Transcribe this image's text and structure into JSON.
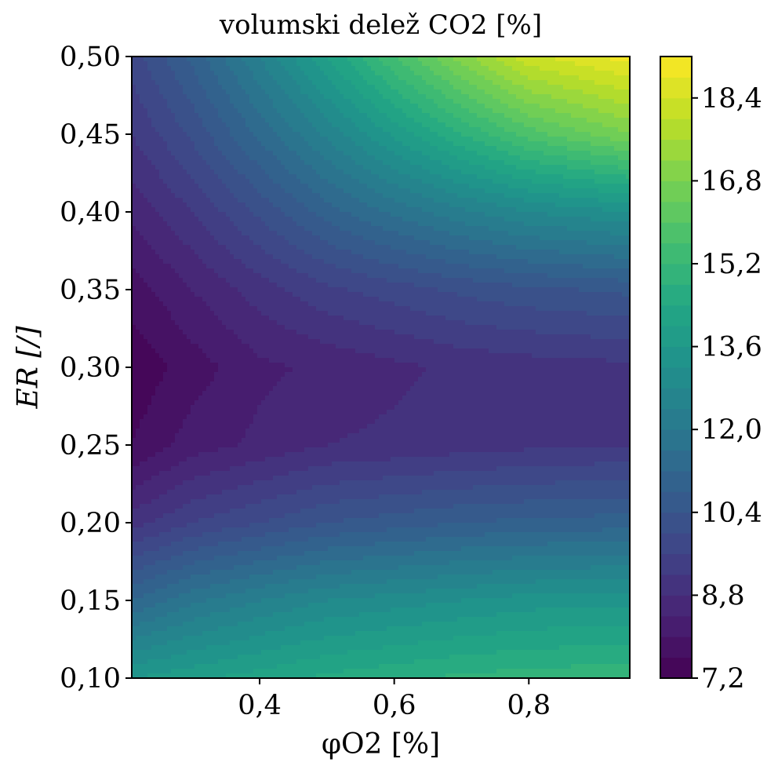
{
  "chart_data": {
    "type": "heatmap",
    "style": "filled-contour",
    "colormap": "viridis",
    "title": "volumski delež CO2 [%]",
    "xlabel": "φO2 [%]",
    "ylabel": "ER [/]",
    "xlim": [
      0.21,
      0.95
    ],
    "ylim": [
      0.1,
      0.5
    ],
    "x_ticks": [
      {
        "value": 0.4,
        "label": "0,4"
      },
      {
        "value": 0.6,
        "label": "0,6"
      },
      {
        "value": 0.8,
        "label": "0,8"
      }
    ],
    "y_ticks": [
      {
        "value": 0.1,
        "label": "0,10"
      },
      {
        "value": 0.15,
        "label": "0,15"
      },
      {
        "value": 0.2,
        "label": "0,20"
      },
      {
        "value": 0.25,
        "label": "0,25"
      },
      {
        "value": 0.3,
        "label": "0,30"
      },
      {
        "value": 0.35,
        "label": "0,35"
      },
      {
        "value": 0.4,
        "label": "0,40"
      },
      {
        "value": 0.45,
        "label": "0,45"
      },
      {
        "value": 0.5,
        "label": "0,50"
      }
    ],
    "colorbar": {
      "range": [
        7.2,
        19.2
      ],
      "level_step": 0.4,
      "ticks": [
        {
          "value": 7.2,
          "label": "7,2"
        },
        {
          "value": 8.8,
          "label": "8,8"
        },
        {
          "value": 10.4,
          "label": "10,4"
        },
        {
          "value": 12.0,
          "label": "12,0"
        },
        {
          "value": 13.6,
          "label": "13,6"
        },
        {
          "value": 15.2,
          "label": "15,2"
        },
        {
          "value": 16.8,
          "label": "16,8"
        },
        {
          "value": 18.4,
          "label": "18,4"
        }
      ]
    },
    "x": [
      0.21,
      0.3,
      0.4,
      0.5,
      0.6,
      0.7,
      0.8,
      0.95
    ],
    "y": [
      0.1,
      0.15,
      0.2,
      0.25,
      0.3,
      0.35,
      0.4,
      0.45,
      0.5
    ],
    "z": [
      [
        13.6,
        13.9,
        14.2,
        14.5,
        14.7,
        14.9,
        15.0,
        15.1
      ],
      [
        11.2,
        11.9,
        12.4,
        12.8,
        13.0,
        13.2,
        13.4,
        13.5
      ],
      [
        9.0,
        9.6,
        10.0,
        10.4,
        10.6,
        10.8,
        10.9,
        11.0
      ],
      [
        7.6,
        8.2,
        8.5,
        8.8,
        8.9,
        9.0,
        9.1,
        9.2
      ],
      [
        7.3,
        7.8,
        8.3,
        8.5,
        8.7,
        8.9,
        9.0,
        9.1
      ],
      [
        7.8,
        8.4,
        9.0,
        9.5,
        9.8,
        10.1,
        10.3,
        10.5
      ],
      [
        8.5,
        9.2,
        10.1,
        11.0,
        11.7,
        12.3,
        12.8,
        13.2
      ],
      [
        9.2,
        10.1,
        11.3,
        12.5,
        13.7,
        14.8,
        15.8,
        16.8
      ],
      [
        9.8,
        10.9,
        12.4,
        14.0,
        15.6,
        17.0,
        18.3,
        19.0
      ]
    ]
  }
}
